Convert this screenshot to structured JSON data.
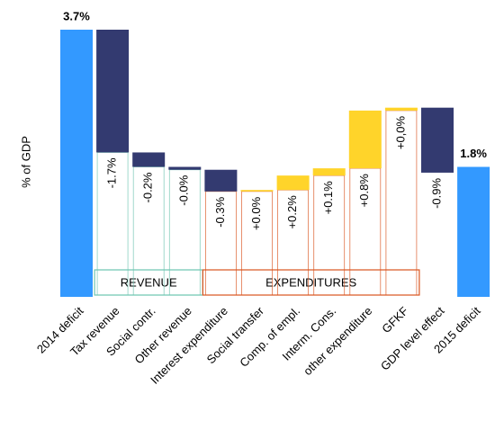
{
  "chart_data": {
    "type": "waterfall",
    "y_label": "% of GDP",
    "categories": [
      "2014 deficit",
      "Tax revenue",
      "Social contr.",
      "Other revenue",
      "Interest expenditure",
      "Social transfer",
      "Comp. of empl.",
      "Interm. Cons.",
      "other expenditure",
      "GFKF",
      "GDP level effect",
      "2015 deficit"
    ],
    "values": [
      3.7,
      -1.7,
      -0.2,
      -0.04,
      -0.3,
      0.02,
      0.2,
      0.1,
      0.8,
      0.04,
      -0.9,
      1.8
    ],
    "value_labels": [
      "3.7%",
      "-1.7%",
      "-0.2%",
      "-0.0%",
      "-0.3%",
      "+0.0%",
      "+0.2%",
      "+0.1%",
      "+0.8%",
      "+0,0%",
      "-0.9%",
      "1.8%"
    ],
    "is_total": [
      true,
      false,
      false,
      false,
      false,
      false,
      false,
      false,
      false,
      false,
      false,
      true
    ],
    "colors": {
      "total": "#3399ff",
      "increase": "#ffd42a",
      "decrease": "#333a70"
    },
    "groups": [
      {
        "label": "REVENUE",
        "color": "#6cc4b0",
        "from": 1,
        "to": 3
      },
      {
        "label": "EXPENDITURES",
        "color": "#d9541e",
        "from": 4,
        "to": 9
      }
    ]
  }
}
